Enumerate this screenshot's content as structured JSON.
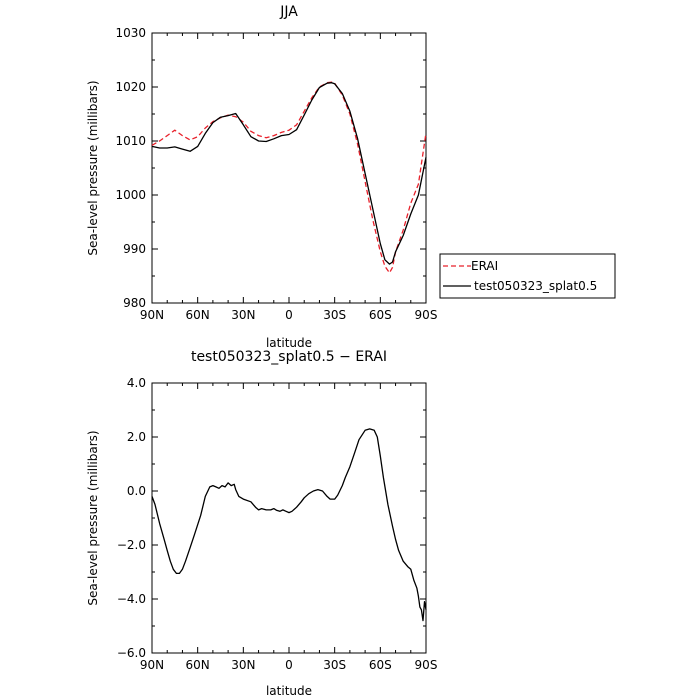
{
  "chart_data": [
    {
      "type": "line",
      "title": "JJA",
      "xlabel": "latitude",
      "ylabel": "Sea-level pressure (millibars)",
      "xlim": [
        -90,
        90
      ],
      "ylim": [
        980,
        1030
      ],
      "x_ticks": [
        -90,
        -60,
        -30,
        0,
        30,
        60,
        90
      ],
      "x_tick_labels": [
        "90N",
        "60N",
        "30N",
        "0",
        "30S",
        "60S",
        "90S"
      ],
      "y_ticks": [
        980,
        990,
        1000,
        1010,
        1020,
        1030
      ],
      "y_tick_labels": [
        "980",
        "990",
        "1000",
        "1010",
        "1020",
        "1030"
      ],
      "legend_position": "right",
      "series": [
        {
          "name": "ERAI",
          "color": "#e8202a",
          "dash": "dashed",
          "x": [
            -90,
            -85,
            -80,
            -75,
            -70,
            -65,
            -60,
            -55,
            -50,
            -45,
            -40,
            -35,
            -30,
            -25,
            -20,
            -15,
            -10,
            -5,
            0,
            5,
            10,
            15,
            20,
            25,
            28,
            30,
            35,
            40,
            45,
            50,
            55,
            60,
            63,
            66,
            68,
            70,
            75,
            80,
            85,
            90
          ],
          "y": [
            1009.2,
            1010.0,
            1011.0,
            1012.0,
            1011.0,
            1010.2,
            1010.8,
            1012.4,
            1013.6,
            1014.3,
            1014.8,
            1014.5,
            1013.5,
            1011.8,
            1011.0,
            1010.6,
            1011.0,
            1011.6,
            1012.0,
            1013.0,
            1015.5,
            1018.0,
            1020.0,
            1020.8,
            1020.9,
            1020.7,
            1018.5,
            1015.0,
            1009.5,
            1002.5,
            995.5,
            989.5,
            986.8,
            985.6,
            986.6,
            989.5,
            993.5,
            998.5,
            1002.0,
            1011.5
          ]
        },
        {
          "name": "test050323_splat0.5",
          "color": "#000000",
          "dash": "solid",
          "x": [
            -90,
            -85,
            -80,
            -75,
            -70,
            -65,
            -60,
            -55,
            -50,
            -45,
            -40,
            -35,
            -30,
            -25,
            -20,
            -15,
            -10,
            -5,
            0,
            5,
            10,
            15,
            20,
            25,
            28,
            30,
            35,
            40,
            45,
            50,
            55,
            60,
            63,
            66,
            68,
            70,
            75,
            80,
            85,
            90
          ],
          "y": [
            1009.0,
            1008.7,
            1008.7,
            1008.9,
            1008.5,
            1008.1,
            1009.0,
            1011.4,
            1013.4,
            1014.4,
            1014.7,
            1015.1,
            1013.0,
            1010.8,
            1010.0,
            1009.9,
            1010.4,
            1011.0,
            1011.2,
            1012.1,
            1014.8,
            1017.6,
            1019.9,
            1020.7,
            1020.8,
            1020.6,
            1018.8,
            1015.5,
            1010.5,
            1004.0,
            997.5,
            991.0,
            988.0,
            987.2,
            987.6,
            989.5,
            992.5,
            996.5,
            1000.0,
            1007.0
          ]
        }
      ]
    },
    {
      "type": "line",
      "title": "test050323_splat0.5 − ERAI",
      "xlabel": "latitude",
      "ylabel": "Sea-level pressure (millibars)",
      "xlim": [
        -90,
        90
      ],
      "ylim": [
        -6,
        4
      ],
      "x_ticks": [
        -90,
        -60,
        -30,
        0,
        30,
        60,
        90
      ],
      "x_tick_labels": [
        "90N",
        "60N",
        "30N",
        "0",
        "30S",
        "60S",
        "90S"
      ],
      "y_ticks": [
        -6,
        -4,
        -2,
        0,
        2,
        4
      ],
      "y_tick_labels": [
        "−6.0",
        "−4.0",
        "−2.0",
        "0.0",
        "2.0",
        "4.0"
      ],
      "series": [
        {
          "color": "#000000",
          "dash": "solid",
          "x": [
            -90,
            -88,
            -85,
            -82,
            -80,
            -78,
            -76,
            -74,
            -72,
            -70,
            -68,
            -65,
            -62,
            -58,
            -55,
            -52,
            -50,
            -48,
            -46,
            -44,
            -42,
            -40,
            -38,
            -36,
            -35,
            -33,
            -30,
            -25,
            -22,
            -20,
            -18,
            -15,
            -12,
            -10,
            -8,
            -6,
            -4,
            -2,
            0,
            2,
            5,
            8,
            10,
            13,
            16,
            19,
            22,
            25,
            27,
            30,
            32,
            35,
            37,
            40,
            43,
            46,
            50,
            53,
            56,
            58,
            60,
            62,
            65,
            68,
            70,
            72,
            75,
            78,
            80,
            82,
            84,
            85,
            86,
            87,
            88,
            89,
            90
          ],
          "y": [
            -0.2,
            -0.5,
            -1.2,
            -1.8,
            -2.2,
            -2.6,
            -2.9,
            -3.05,
            -3.05,
            -2.9,
            -2.6,
            -2.1,
            -1.6,
            -0.9,
            -0.2,
            0.15,
            0.2,
            0.15,
            0.1,
            0.2,
            0.15,
            0.3,
            0.2,
            0.25,
            0.05,
            -0.2,
            -0.3,
            -0.4,
            -0.6,
            -0.7,
            -0.65,
            -0.7,
            -0.7,
            -0.65,
            -0.72,
            -0.75,
            -0.7,
            -0.75,
            -0.8,
            -0.75,
            -0.6,
            -0.4,
            -0.25,
            -0.1,
            0.0,
            0.05,
            0.0,
            -0.2,
            -0.3,
            -0.3,
            -0.15,
            0.2,
            0.5,
            0.9,
            1.4,
            1.9,
            2.25,
            2.3,
            2.25,
            2.0,
            1.3,
            0.5,
            -0.5,
            -1.3,
            -1.8,
            -2.2,
            -2.6,
            -2.8,
            -2.9,
            -3.3,
            -3.6,
            -3.9,
            -4.3,
            -4.4,
            -4.8,
            -4.1,
            -4.4
          ]
        }
      ]
    }
  ]
}
